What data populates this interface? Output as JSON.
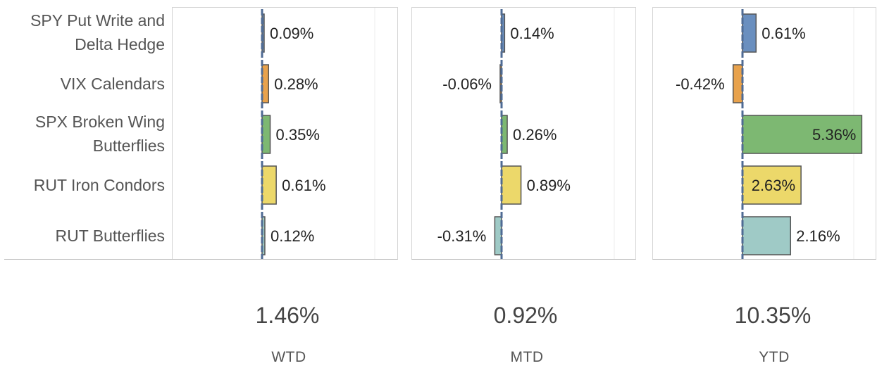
{
  "colors": {
    "spy": "#6a8fbf",
    "vix": "#e8a24c",
    "spx": "#7db872",
    "rut_ic": "#ecd86a",
    "rut_bf": "#9fcac6",
    "zero_line": "#4f6b94",
    "bar_border": "#555555"
  },
  "chart_data": [
    {
      "type": "bar",
      "orientation": "horizontal",
      "period": "WTD",
      "total": "1.46%",
      "categories": [
        "SPY Put Write and Delta Hedge",
        "VIX Calendars",
        "SPX Broken Wing Butterflies",
        "RUT Iron Condors",
        "RUT Butterflies"
      ],
      "values": [
        0.09,
        0.28,
        0.35,
        0.61,
        0.12
      ],
      "value_labels": [
        "0.09%",
        "0.28%",
        "0.35%",
        "0.61%",
        "0.12%"
      ],
      "xlim": [
        -3.5,
        5.1
      ],
      "grid": true
    },
    {
      "type": "bar",
      "orientation": "horizontal",
      "period": "MTD",
      "total": "0.92%",
      "categories": [
        "SPY Put Write and Delta Hedge",
        "VIX Calendars",
        "SPX Broken Wing Butterflies",
        "RUT Iron Condors",
        "RUT Butterflies"
      ],
      "values": [
        0.14,
        -0.06,
        0.26,
        0.89,
        -0.31
      ],
      "value_labels": [
        "0.14%",
        "-0.06%",
        "0.26%",
        "0.89%",
        "-0.31%"
      ],
      "xlim": [
        -3.5,
        5.1
      ],
      "grid": true
    },
    {
      "type": "bar",
      "orientation": "horizontal",
      "period": "YTD",
      "total": "10.35%",
      "categories": [
        "SPY Put Write and Delta Hedge",
        "VIX Calendars",
        "SPX Broken Wing Butterflies",
        "RUT Iron Condors",
        "RUT Butterflies"
      ],
      "values": [
        0.61,
        -0.42,
        5.36,
        2.63,
        2.16
      ],
      "value_labels": [
        "0.61%",
        "-0.42%",
        "5.36%",
        "2.63%",
        "2.16%"
      ],
      "xlim": [
        -3.5,
        5.1
      ],
      "grid": true
    }
  ],
  "row_labels": [
    "SPY Put Write and\nDelta Hedge",
    "VIX Calendars",
    "SPX Broken Wing\nButterflies",
    "RUT Iron Condors",
    "RUT Butterflies"
  ]
}
